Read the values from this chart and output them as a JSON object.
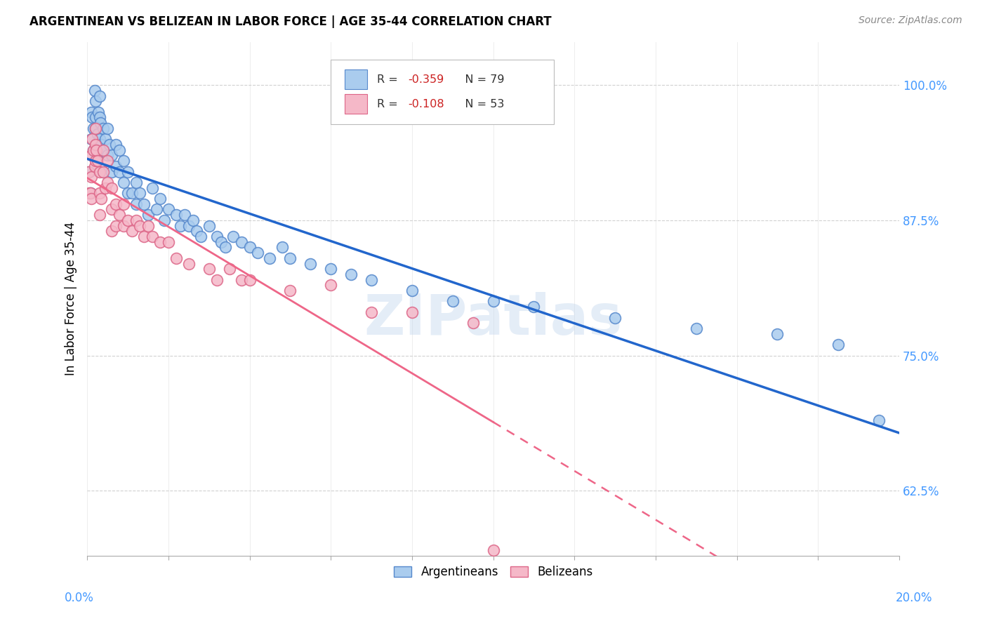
{
  "title": "ARGENTINEAN VS BELIZEAN IN LABOR FORCE | AGE 35-44 CORRELATION CHART",
  "source": "Source: ZipAtlas.com",
  "ylabel": "In Labor Force | Age 35-44",
  "yticks_labels": [
    "62.5%",
    "75.0%",
    "87.5%",
    "100.0%"
  ],
  "ytick_vals": [
    0.625,
    0.75,
    0.875,
    1.0
  ],
  "xlim": [
    0.0,
    0.2
  ],
  "ylim": [
    0.565,
    1.04
  ],
  "blue_fill": "#aaccee",
  "pink_fill": "#f5b8c8",
  "blue_edge": "#5588cc",
  "pink_edge": "#dd6688",
  "blue_line": "#2266cc",
  "pink_line": "#ee6688",
  "watermark": "ZIPatlas",
  "argentineans_x": [
    0.0005,
    0.0008,
    0.001,
    0.001,
    0.0012,
    0.0015,
    0.0015,
    0.0018,
    0.002,
    0.002,
    0.002,
    0.002,
    0.0022,
    0.0025,
    0.0028,
    0.003,
    0.003,
    0.003,
    0.0032,
    0.0035,
    0.004,
    0.004,
    0.004,
    0.0045,
    0.005,
    0.005,
    0.0055,
    0.006,
    0.006,
    0.007,
    0.007,
    0.008,
    0.008,
    0.009,
    0.009,
    0.01,
    0.01,
    0.011,
    0.012,
    0.012,
    0.013,
    0.014,
    0.015,
    0.016,
    0.017,
    0.018,
    0.019,
    0.02,
    0.022,
    0.023,
    0.024,
    0.025,
    0.026,
    0.027,
    0.028,
    0.03,
    0.032,
    0.033,
    0.034,
    0.036,
    0.038,
    0.04,
    0.042,
    0.045,
    0.048,
    0.05,
    0.055,
    0.06,
    0.065,
    0.07,
    0.08,
    0.09,
    0.1,
    0.11,
    0.13,
    0.15,
    0.17,
    0.185,
    0.195
  ],
  "argentineans_y": [
    0.92,
    0.9,
    0.975,
    0.95,
    0.97,
    0.96,
    0.94,
    0.995,
    0.985,
    0.97,
    0.96,
    0.945,
    0.935,
    0.955,
    0.975,
    0.99,
    0.97,
    0.95,
    0.965,
    0.945,
    0.96,
    0.94,
    0.92,
    0.95,
    0.96,
    0.935,
    0.945,
    0.935,
    0.92,
    0.945,
    0.925,
    0.94,
    0.92,
    0.93,
    0.91,
    0.92,
    0.9,
    0.9,
    0.91,
    0.89,
    0.9,
    0.89,
    0.88,
    0.905,
    0.885,
    0.895,
    0.875,
    0.885,
    0.88,
    0.87,
    0.88,
    0.87,
    0.875,
    0.865,
    0.86,
    0.87,
    0.86,
    0.855,
    0.85,
    0.86,
    0.855,
    0.85,
    0.845,
    0.84,
    0.85,
    0.84,
    0.835,
    0.83,
    0.825,
    0.82,
    0.81,
    0.8,
    0.8,
    0.795,
    0.785,
    0.775,
    0.77,
    0.76,
    0.69
  ],
  "belizeans_x": [
    0.0003,
    0.0005,
    0.0008,
    0.001,
    0.001,
    0.001,
    0.0012,
    0.0015,
    0.0018,
    0.002,
    0.002,
    0.002,
    0.0022,
    0.0025,
    0.003,
    0.003,
    0.003,
    0.0035,
    0.004,
    0.004,
    0.0045,
    0.005,
    0.005,
    0.006,
    0.006,
    0.006,
    0.007,
    0.007,
    0.008,
    0.009,
    0.009,
    0.01,
    0.011,
    0.012,
    0.013,
    0.014,
    0.015,
    0.016,
    0.018,
    0.02,
    0.022,
    0.025,
    0.03,
    0.032,
    0.035,
    0.038,
    0.04,
    0.05,
    0.06,
    0.07,
    0.08,
    0.095,
    0.1
  ],
  "belizeans_y": [
    0.92,
    0.9,
    0.9,
    0.935,
    0.915,
    0.895,
    0.95,
    0.94,
    0.925,
    0.96,
    0.945,
    0.93,
    0.94,
    0.93,
    0.92,
    0.9,
    0.88,
    0.895,
    0.94,
    0.92,
    0.905,
    0.93,
    0.91,
    0.905,
    0.885,
    0.865,
    0.89,
    0.87,
    0.88,
    0.89,
    0.87,
    0.875,
    0.865,
    0.875,
    0.87,
    0.86,
    0.87,
    0.86,
    0.855,
    0.855,
    0.84,
    0.835,
    0.83,
    0.82,
    0.83,
    0.82,
    0.82,
    0.81,
    0.815,
    0.79,
    0.79,
    0.78,
    0.57
  ]
}
